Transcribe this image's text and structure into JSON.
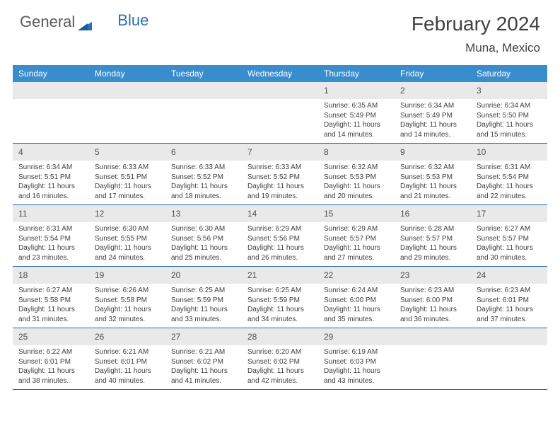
{
  "brand": {
    "part1": "General",
    "part2": "Blue"
  },
  "title": "February 2024",
  "location": "Muna, Mexico",
  "colors": {
    "header_bg": "#3a8dcc",
    "week_border": "#2a6aa8",
    "daynum_bg": "#e9e9e9",
    "text": "#404040",
    "brand_blue": "#2d6fb5"
  },
  "weekdays": [
    "Sunday",
    "Monday",
    "Tuesday",
    "Wednesday",
    "Thursday",
    "Friday",
    "Saturday"
  ],
  "weeks": [
    [
      null,
      null,
      null,
      null,
      {
        "n": "1",
        "sr": "Sunrise: 6:35 AM",
        "ss": "Sunset: 5:49 PM",
        "d1": "Daylight: 11 hours",
        "d2": "and 14 minutes."
      },
      {
        "n": "2",
        "sr": "Sunrise: 6:34 AM",
        "ss": "Sunset: 5:49 PM",
        "d1": "Daylight: 11 hours",
        "d2": "and 14 minutes."
      },
      {
        "n": "3",
        "sr": "Sunrise: 6:34 AM",
        "ss": "Sunset: 5:50 PM",
        "d1": "Daylight: 11 hours",
        "d2": "and 15 minutes."
      }
    ],
    [
      {
        "n": "4",
        "sr": "Sunrise: 6:34 AM",
        "ss": "Sunset: 5:51 PM",
        "d1": "Daylight: 11 hours",
        "d2": "and 16 minutes."
      },
      {
        "n": "5",
        "sr": "Sunrise: 6:33 AM",
        "ss": "Sunset: 5:51 PM",
        "d1": "Daylight: 11 hours",
        "d2": "and 17 minutes."
      },
      {
        "n": "6",
        "sr": "Sunrise: 6:33 AM",
        "ss": "Sunset: 5:52 PM",
        "d1": "Daylight: 11 hours",
        "d2": "and 18 minutes."
      },
      {
        "n": "7",
        "sr": "Sunrise: 6:33 AM",
        "ss": "Sunset: 5:52 PM",
        "d1": "Daylight: 11 hours",
        "d2": "and 19 minutes."
      },
      {
        "n": "8",
        "sr": "Sunrise: 6:32 AM",
        "ss": "Sunset: 5:53 PM",
        "d1": "Daylight: 11 hours",
        "d2": "and 20 minutes."
      },
      {
        "n": "9",
        "sr": "Sunrise: 6:32 AM",
        "ss": "Sunset: 5:53 PM",
        "d1": "Daylight: 11 hours",
        "d2": "and 21 minutes."
      },
      {
        "n": "10",
        "sr": "Sunrise: 6:31 AM",
        "ss": "Sunset: 5:54 PM",
        "d1": "Daylight: 11 hours",
        "d2": "and 22 minutes."
      }
    ],
    [
      {
        "n": "11",
        "sr": "Sunrise: 6:31 AM",
        "ss": "Sunset: 5:54 PM",
        "d1": "Daylight: 11 hours",
        "d2": "and 23 minutes."
      },
      {
        "n": "12",
        "sr": "Sunrise: 6:30 AM",
        "ss": "Sunset: 5:55 PM",
        "d1": "Daylight: 11 hours",
        "d2": "and 24 minutes."
      },
      {
        "n": "13",
        "sr": "Sunrise: 6:30 AM",
        "ss": "Sunset: 5:56 PM",
        "d1": "Daylight: 11 hours",
        "d2": "and 25 minutes."
      },
      {
        "n": "14",
        "sr": "Sunrise: 6:29 AM",
        "ss": "Sunset: 5:56 PM",
        "d1": "Daylight: 11 hours",
        "d2": "and 26 minutes."
      },
      {
        "n": "15",
        "sr": "Sunrise: 6:29 AM",
        "ss": "Sunset: 5:57 PM",
        "d1": "Daylight: 11 hours",
        "d2": "and 27 minutes."
      },
      {
        "n": "16",
        "sr": "Sunrise: 6:28 AM",
        "ss": "Sunset: 5:57 PM",
        "d1": "Daylight: 11 hours",
        "d2": "and 29 minutes."
      },
      {
        "n": "17",
        "sr": "Sunrise: 6:27 AM",
        "ss": "Sunset: 5:57 PM",
        "d1": "Daylight: 11 hours",
        "d2": "and 30 minutes."
      }
    ],
    [
      {
        "n": "18",
        "sr": "Sunrise: 6:27 AM",
        "ss": "Sunset: 5:58 PM",
        "d1": "Daylight: 11 hours",
        "d2": "and 31 minutes."
      },
      {
        "n": "19",
        "sr": "Sunrise: 6:26 AM",
        "ss": "Sunset: 5:58 PM",
        "d1": "Daylight: 11 hours",
        "d2": "and 32 minutes."
      },
      {
        "n": "20",
        "sr": "Sunrise: 6:25 AM",
        "ss": "Sunset: 5:59 PM",
        "d1": "Daylight: 11 hours",
        "d2": "and 33 minutes."
      },
      {
        "n": "21",
        "sr": "Sunrise: 6:25 AM",
        "ss": "Sunset: 5:59 PM",
        "d1": "Daylight: 11 hours",
        "d2": "and 34 minutes."
      },
      {
        "n": "22",
        "sr": "Sunrise: 6:24 AM",
        "ss": "Sunset: 6:00 PM",
        "d1": "Daylight: 11 hours",
        "d2": "and 35 minutes."
      },
      {
        "n": "23",
        "sr": "Sunrise: 6:23 AM",
        "ss": "Sunset: 6:00 PM",
        "d1": "Daylight: 11 hours",
        "d2": "and 36 minutes."
      },
      {
        "n": "24",
        "sr": "Sunrise: 6:23 AM",
        "ss": "Sunset: 6:01 PM",
        "d1": "Daylight: 11 hours",
        "d2": "and 37 minutes."
      }
    ],
    [
      {
        "n": "25",
        "sr": "Sunrise: 6:22 AM",
        "ss": "Sunset: 6:01 PM",
        "d1": "Daylight: 11 hours",
        "d2": "and 38 minutes."
      },
      {
        "n": "26",
        "sr": "Sunrise: 6:21 AM",
        "ss": "Sunset: 6:01 PM",
        "d1": "Daylight: 11 hours",
        "d2": "and 40 minutes."
      },
      {
        "n": "27",
        "sr": "Sunrise: 6:21 AM",
        "ss": "Sunset: 6:02 PM",
        "d1": "Daylight: 11 hours",
        "d2": "and 41 minutes."
      },
      {
        "n": "28",
        "sr": "Sunrise: 6:20 AM",
        "ss": "Sunset: 6:02 PM",
        "d1": "Daylight: 11 hours",
        "d2": "and 42 minutes."
      },
      {
        "n": "29",
        "sr": "Sunrise: 6:19 AM",
        "ss": "Sunset: 6:03 PM",
        "d1": "Daylight: 11 hours",
        "d2": "and 43 minutes."
      },
      null,
      null
    ]
  ]
}
